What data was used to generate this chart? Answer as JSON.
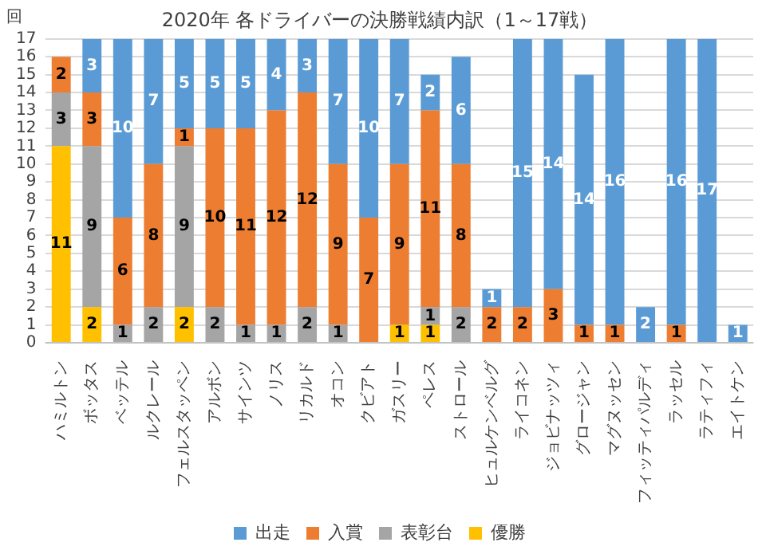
{
  "chart_data": {
    "type": "bar",
    "title": "2020年 各ドライバーの決勝戦績内訳（1～17戦）",
    "ylabel": "回",
    "categories": [
      "ハミルトン",
      "ボッタス",
      "ベッテル",
      "ルクレール",
      "フェルスタッペン",
      "アルボン",
      "サインツ",
      "ノリス",
      "リカルド",
      "オコン",
      "クビアト",
      "ガスリー",
      "ペレス",
      "ストロール",
      "ヒュルケンベルグ",
      "ライコネン",
      "ジョビナッツィ",
      "グロージャン",
      "マグヌッセン",
      "フィッティパルディ",
      "ラッセル",
      "ラティフィ",
      "エイトケン"
    ],
    "series": [
      {
        "name": "優勝",
        "color": "#ffc000",
        "values": [
          11,
          2,
          null,
          null,
          2,
          null,
          null,
          null,
          null,
          null,
          null,
          1,
          1,
          null,
          null,
          null,
          null,
          null,
          null,
          null,
          null,
          null,
          null
        ]
      },
      {
        "name": "表彰台",
        "color": "#a5a5a5",
        "values": [
          3,
          9,
          1,
          2,
          9,
          2,
          1,
          1,
          2,
          1,
          null,
          null,
          1,
          2,
          null,
          null,
          null,
          null,
          null,
          null,
          null,
          null,
          null
        ]
      },
      {
        "name": "入賞",
        "color": "#ed7d31",
        "values": [
          2,
          3,
          6,
          8,
          1,
          10,
          11,
          12,
          12,
          9,
          7,
          9,
          11,
          8,
          2,
          2,
          3,
          1,
          1,
          null,
          1,
          null,
          null
        ]
      },
      {
        "name": "出走",
        "color": "#5b9bd5",
        "values": [
          null,
          3,
          10,
          7,
          5,
          5,
          5,
          4,
          3,
          7,
          10,
          7,
          2,
          6,
          1,
          15,
          14,
          14,
          16,
          2,
          16,
          17,
          1
        ]
      }
    ],
    "stacked": true,
    "ylim": [
      0,
      17
    ],
    "yticks": [
      0,
      1,
      2,
      3,
      4,
      5,
      6,
      7,
      8,
      9,
      10,
      11,
      12,
      13,
      14,
      15,
      16,
      17
    ],
    "grid": "y",
    "legend": "bottom",
    "data_labels": true
  }
}
